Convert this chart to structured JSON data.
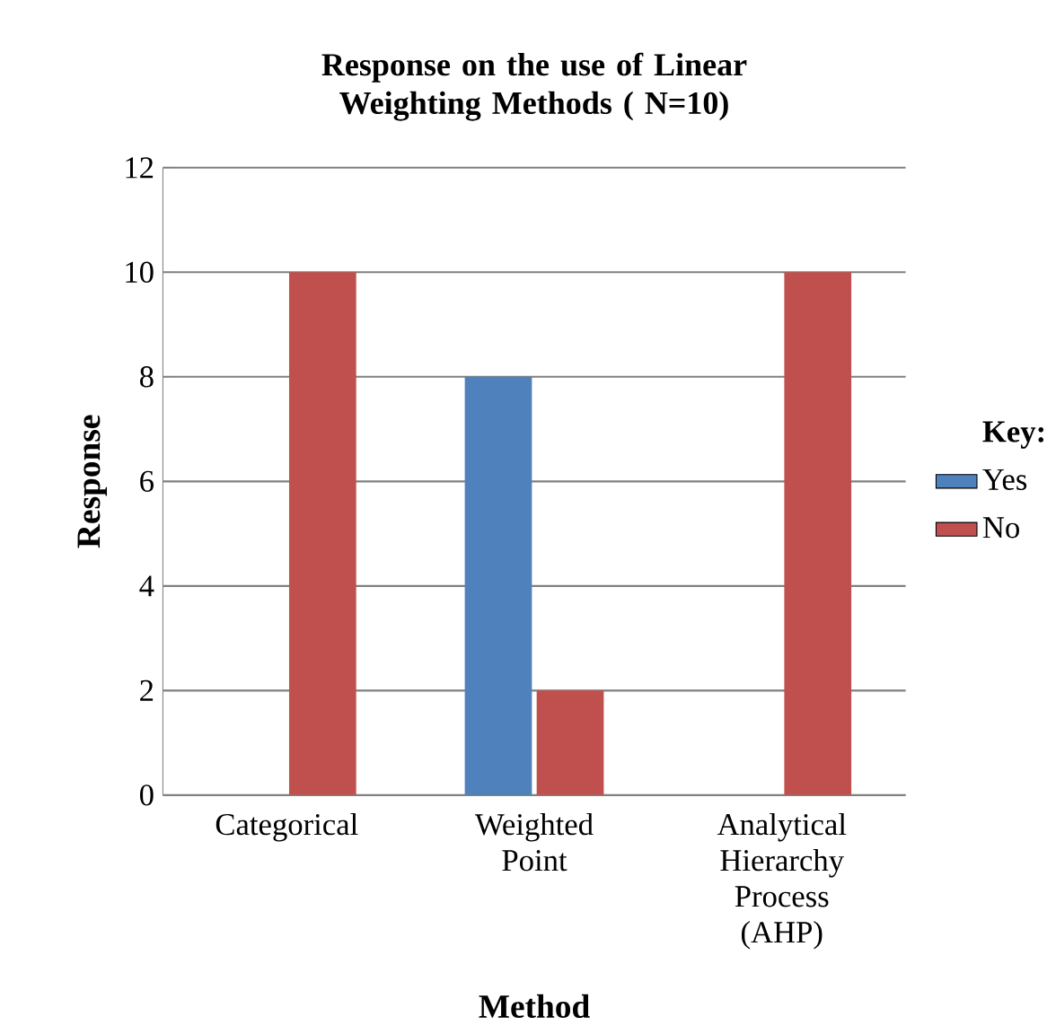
{
  "chart_data": {
    "type": "bar",
    "title": "Response on the use of Linear Weighting Methods ( N=10)",
    "xlabel": "Method",
    "ylabel": "Response",
    "legend_title": "Key:",
    "categories": [
      "Categorical",
      "Weighted Point",
      "Analytical Hierarchy Process (AHP)"
    ],
    "series": [
      {
        "name": "Yes",
        "color": "#4f81bd",
        "values": [
          0,
          8,
          0
        ]
      },
      {
        "name": "No",
        "color": "#c0504d",
        "values": [
          10,
          2,
          10
        ]
      }
    ],
    "ylim": [
      0,
      12
    ],
    "yticks": [
      0,
      2,
      4,
      6,
      8,
      10,
      12
    ],
    "grid": "y",
    "legend": "right"
  }
}
